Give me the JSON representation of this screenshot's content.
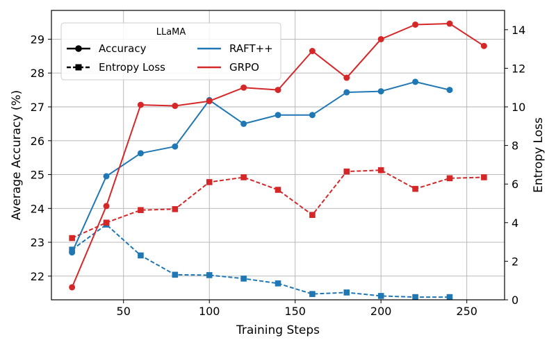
{
  "chart_data": {
    "type": "line",
    "xlabel": "Training Steps",
    "ylabel_left": "Average Accuracy (%)",
    "ylabel_right": "Entropy Loss",
    "xlim": [
      8,
      272
    ],
    "ylim_left": [
      21.3,
      29.85
    ],
    "ylim_right": [
      0,
      15
    ],
    "x_ticks": [
      50,
      100,
      150,
      200,
      250
    ],
    "y_ticks_left": [
      22,
      23,
      24,
      25,
      26,
      27,
      28,
      29
    ],
    "y_ticks_right": [
      0,
      2,
      4,
      6,
      8,
      10,
      12,
      14
    ],
    "grid": true,
    "legend": {
      "title": "LLaMA",
      "placement": "top-left",
      "style_entries": [
        {
          "label": "Accuracy",
          "linestyle": "solid",
          "marker": "circle"
        },
        {
          "label": "Entropy Loss",
          "linestyle": "dashed",
          "marker": "square"
        }
      ],
      "color_entries": [
        {
          "label": "RAFT++",
          "color": "#1f77b4"
        },
        {
          "label": "GRPO",
          "color": "#d62728"
        }
      ]
    },
    "series": [
      {
        "name": "RAFT++",
        "metric": "Accuracy",
        "axis": "left",
        "color": "#1f77b4",
        "linestyle": "solid",
        "marker": "circle",
        "x": [
          20,
          40,
          60,
          80,
          100,
          120,
          140,
          160,
          180,
          200,
          220,
          240
        ],
        "y": [
          22.7,
          24.95,
          25.63,
          25.83,
          27.2,
          26.5,
          26.76,
          26.76,
          27.43,
          27.46,
          27.74,
          27.5
        ]
      },
      {
        "name": "GRPO",
        "metric": "Accuracy",
        "axis": "left",
        "color": "#d62728",
        "linestyle": "solid",
        "marker": "circle",
        "x": [
          20,
          40,
          60,
          80,
          100,
          120,
          140,
          160,
          180,
          200,
          220,
          240,
          260
        ],
        "y": [
          21.67,
          24.07,
          27.06,
          27.03,
          27.17,
          27.57,
          27.5,
          28.65,
          27.86,
          29.0,
          29.43,
          29.46,
          28.8
        ]
      },
      {
        "name": "RAFT++",
        "metric": "Entropy Loss",
        "axis": "right",
        "color": "#1f77b4",
        "linestyle": "dashed",
        "marker": "square",
        "x": [
          20,
          40,
          60,
          80,
          100,
          120,
          140,
          160,
          180,
          200,
          220,
          240
        ],
        "y": [
          2.6,
          3.9,
          2.3,
          1.3,
          1.28,
          1.1,
          0.85,
          0.3,
          0.38,
          0.2,
          0.14,
          0.14
        ]
      },
      {
        "name": "GRPO",
        "metric": "Entropy Loss",
        "axis": "right",
        "color": "#d62728",
        "linestyle": "dashed",
        "marker": "square",
        "x": [
          20,
          40,
          60,
          80,
          100,
          120,
          140,
          160,
          180,
          200,
          220,
          240,
          260
        ],
        "y": [
          3.2,
          4.0,
          4.65,
          4.7,
          6.1,
          6.35,
          5.7,
          4.4,
          6.65,
          6.72,
          5.75,
          6.3,
          6.35
        ]
      }
    ]
  }
}
